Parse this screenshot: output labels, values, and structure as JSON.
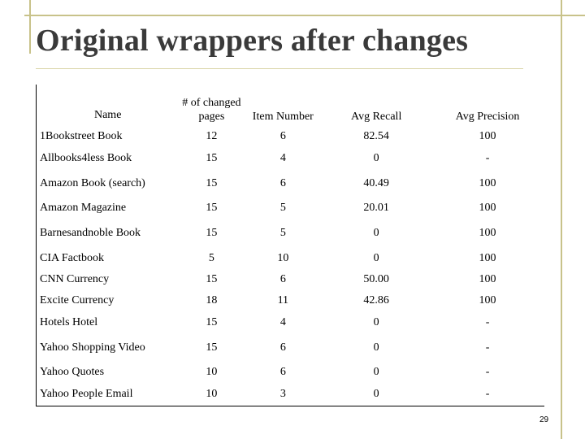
{
  "slide": {
    "title": "Original wrappers after changes",
    "page_number": "29"
  },
  "table": {
    "headers": [
      "Name",
      "# of changed pages",
      "Item Number",
      "Avg Recall",
      "Avg Precision"
    ],
    "rows": [
      [
        "1Bookstreet Book",
        "12",
        "6",
        "82.54",
        "100"
      ],
      [
        "Allbooks4less Book",
        "15",
        "4",
        "0",
        "-"
      ],
      [
        "Amazon Book (search)",
        "15",
        "6",
        "40.49",
        "100"
      ],
      [
        "Amazon Magazine",
        "15",
        "5",
        "20.01",
        "100"
      ],
      [
        "Barnesandnoble Book",
        "15",
        "5",
        "0",
        "100"
      ],
      [
        "CIA Factbook",
        "5",
        "10",
        "0",
        "100"
      ],
      [
        "CNN Currency",
        "15",
        "6",
        "50.00",
        "100"
      ],
      [
        "Excite Currency",
        "18",
        "11",
        "42.86",
        "100"
      ],
      [
        "Hotels Hotel",
        "15",
        "4",
        "0",
        "-"
      ],
      [
        "Yahoo Shopping Video",
        "15",
        "6",
        "0",
        "-"
      ],
      [
        "Yahoo Quotes",
        "10",
        "6",
        "0",
        "-"
      ],
      [
        "Yahoo People Email",
        "10",
        "3",
        "0",
        "-"
      ]
    ]
  }
}
